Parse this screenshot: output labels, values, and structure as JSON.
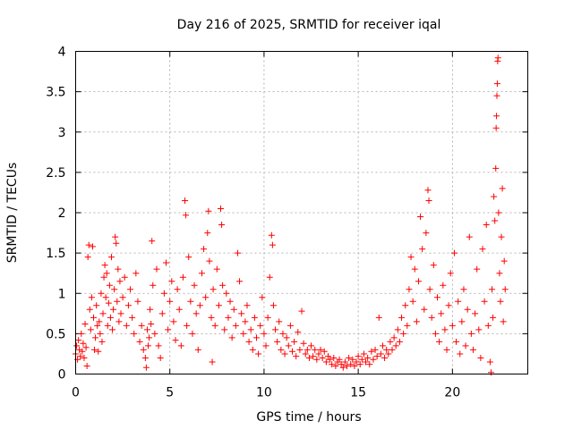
{
  "chart_data": {
    "type": "scatter",
    "title": "Day 216 of 2025, SRMTID for receiver iqal",
    "xlabel": "GPS time / hours",
    "ylabel": "SRMTID / TECUs",
    "xlim": [
      0,
      24
    ],
    "ylim": [
      0,
      4
    ],
    "xticks": [
      0,
      5,
      10,
      15,
      20
    ],
    "xtick_labels": [
      "0",
      "5",
      "10",
      "15",
      "20"
    ],
    "yticks": [
      0,
      0.5,
      1,
      1.5,
      2,
      2.5,
      3,
      3.5,
      4
    ],
    "ytick_labels": [
      "0",
      "0.5",
      "1",
      "1.5",
      "2",
      "2.5",
      "3",
      "3.5",
      "4"
    ],
    "grid": true,
    "marker": "+",
    "color": "#ff0000",
    "series": [
      {
        "name": "SRMTID",
        "points": [
          [
            0.0,
            0.25
          ],
          [
            0.05,
            0.35
          ],
          [
            0.1,
            0.18
          ],
          [
            0.15,
            0.42
          ],
          [
            0.2,
            0.3
          ],
          [
            0.25,
            0.22
          ],
          [
            0.3,
            0.5
          ],
          [
            0.35,
            0.28
          ],
          [
            0.4,
            0.38
          ],
          [
            0.45,
            0.2
          ],
          [
            0.5,
            0.62
          ],
          [
            0.55,
            0.33
          ],
          [
            0.6,
            0.1
          ],
          [
            0.65,
            1.45
          ],
          [
            0.7,
            1.6
          ],
          [
            0.75,
            0.8
          ],
          [
            0.8,
            0.55
          ],
          [
            0.85,
            0.95
          ],
          [
            0.9,
            1.58
          ],
          [
            0.95,
            0.7
          ],
          [
            1.0,
            0.3
          ],
          [
            1.05,
            0.45
          ],
          [
            1.1,
            0.85
          ],
          [
            1.15,
            0.6
          ],
          [
            1.2,
            0.28
          ],
          [
            1.25,
            0.65
          ],
          [
            1.3,
            0.5
          ],
          [
            1.35,
            1.0
          ],
          [
            1.4,
            0.4
          ],
          [
            1.45,
            0.75
          ],
          [
            1.5,
            1.2
          ],
          [
            1.55,
            1.35
          ],
          [
            1.6,
            0.95
          ],
          [
            1.65,
            1.25
          ],
          [
            1.7,
            0.6
          ],
          [
            1.75,
            0.88
          ],
          [
            1.8,
            1.1
          ],
          [
            1.85,
            0.7
          ],
          [
            1.9,
            1.45
          ],
          [
            1.95,
            0.55
          ],
          [
            2.0,
            0.8
          ],
          [
            2.05,
            1.05
          ],
          [
            2.1,
            1.7
          ],
          [
            2.15,
            1.62
          ],
          [
            2.2,
            0.9
          ],
          [
            2.25,
            1.3
          ],
          [
            2.3,
            0.65
          ],
          [
            2.35,
            1.15
          ],
          [
            2.4,
            0.75
          ],
          [
            2.5,
            0.95
          ],
          [
            2.6,
            1.2
          ],
          [
            2.7,
            0.6
          ],
          [
            2.8,
            0.85
          ],
          [
            2.9,
            1.05
          ],
          [
            3.0,
            0.7
          ],
          [
            3.1,
            0.5
          ],
          [
            3.2,
            1.25
          ],
          [
            3.3,
            0.9
          ],
          [
            3.4,
            0.4
          ],
          [
            3.5,
            0.6
          ],
          [
            3.6,
            0.3
          ],
          [
            3.7,
            0.2
          ],
          [
            3.75,
            0.08
          ],
          [
            3.8,
            0.55
          ],
          [
            3.85,
            0.35
          ],
          [
            3.9,
            0.45
          ],
          [
            3.95,
            0.8
          ],
          [
            4.0,
            0.62
          ],
          [
            4.05,
            1.65
          ],
          [
            4.1,
            1.1
          ],
          [
            4.2,
            0.5
          ],
          [
            4.3,
            1.3
          ],
          [
            4.4,
            0.35
          ],
          [
            4.5,
            0.2
          ],
          [
            4.6,
            0.75
          ],
          [
            4.7,
            1.0
          ],
          [
            4.8,
            1.38
          ],
          [
            4.9,
            0.55
          ],
          [
            5.0,
            0.9
          ],
          [
            5.1,
            1.15
          ],
          [
            5.2,
            0.65
          ],
          [
            5.3,
            0.42
          ],
          [
            5.4,
            1.05
          ],
          [
            5.5,
            0.8
          ],
          [
            5.6,
            0.35
          ],
          [
            5.7,
            1.2
          ],
          [
            5.8,
            2.15
          ],
          [
            5.85,
            1.97
          ],
          [
            5.9,
            0.6
          ],
          [
            6.0,
            1.45
          ],
          [
            6.1,
            0.9
          ],
          [
            6.2,
            0.5
          ],
          [
            6.3,
            1.1
          ],
          [
            6.4,
            0.75
          ],
          [
            6.5,
            0.3
          ],
          [
            6.6,
            0.85
          ],
          [
            6.7,
            1.25
          ],
          [
            6.8,
            1.55
          ],
          [
            6.9,
            0.95
          ],
          [
            7.0,
            1.75
          ],
          [
            7.05,
            2.02
          ],
          [
            7.1,
            1.4
          ],
          [
            7.2,
            0.7
          ],
          [
            7.25,
            0.15
          ],
          [
            7.3,
            1.05
          ],
          [
            7.4,
            0.6
          ],
          [
            7.5,
            1.3
          ],
          [
            7.6,
            0.85
          ],
          [
            7.7,
            2.05
          ],
          [
            7.75,
            1.85
          ],
          [
            7.8,
            1.1
          ],
          [
            7.9,
            0.55
          ],
          [
            8.0,
            1.0
          ],
          [
            8.1,
            0.7
          ],
          [
            8.2,
            0.9
          ],
          [
            8.3,
            0.45
          ],
          [
            8.4,
            0.8
          ],
          [
            8.5,
            0.6
          ],
          [
            8.6,
            1.5
          ],
          [
            8.7,
            1.15
          ],
          [
            8.8,
            0.75
          ],
          [
            8.9,
            0.5
          ],
          [
            9.0,
            0.65
          ],
          [
            9.1,
            0.85
          ],
          [
            9.2,
            0.4
          ],
          [
            9.3,
            0.55
          ],
          [
            9.4,
            0.3
          ],
          [
            9.5,
            0.7
          ],
          [
            9.6,
            0.45
          ],
          [
            9.7,
            0.25
          ],
          [
            9.8,
            0.6
          ],
          [
            9.9,
            0.95
          ],
          [
            10.0,
            0.5
          ],
          [
            10.1,
            0.35
          ],
          [
            10.2,
            0.7
          ],
          [
            10.3,
            1.2
          ],
          [
            10.4,
            1.72
          ],
          [
            10.45,
            1.6
          ],
          [
            10.5,
            0.85
          ],
          [
            10.6,
            0.55
          ],
          [
            10.7,
            0.4
          ],
          [
            10.8,
            0.65
          ],
          [
            10.9,
            0.3
          ],
          [
            11.0,
            0.5
          ],
          [
            11.1,
            0.25
          ],
          [
            11.2,
            0.45
          ],
          [
            11.3,
            0.35
          ],
          [
            11.4,
            0.6
          ],
          [
            11.5,
            0.28
          ],
          [
            11.6,
            0.4
          ],
          [
            11.7,
            0.22
          ],
          [
            11.8,
            0.52
          ],
          [
            11.9,
            0.3
          ],
          [
            12.0,
            0.78
          ],
          [
            12.1,
            0.38
          ],
          [
            12.2,
            0.25
          ],
          [
            12.3,
            0.3
          ],
          [
            12.4,
            0.2
          ],
          [
            12.5,
            0.35
          ],
          [
            12.6,
            0.22
          ],
          [
            12.7,
            0.3
          ],
          [
            12.8,
            0.18
          ],
          [
            12.9,
            0.25
          ],
          [
            13.0,
            0.3
          ],
          [
            13.1,
            0.2
          ],
          [
            13.2,
            0.28
          ],
          [
            13.3,
            0.15
          ],
          [
            13.4,
            0.22
          ],
          [
            13.5,
            0.18
          ],
          [
            13.6,
            0.12
          ],
          [
            13.7,
            0.2
          ],
          [
            13.8,
            0.1
          ],
          [
            13.9,
            0.15
          ],
          [
            14.0,
            0.18
          ],
          [
            14.1,
            0.12
          ],
          [
            14.2,
            0.08
          ],
          [
            14.3,
            0.15
          ],
          [
            14.4,
            0.1
          ],
          [
            14.5,
            0.2
          ],
          [
            14.6,
            0.12
          ],
          [
            14.7,
            0.18
          ],
          [
            14.8,
            0.1
          ],
          [
            14.9,
            0.15
          ],
          [
            15.0,
            0.22
          ],
          [
            15.1,
            0.12
          ],
          [
            15.2,
            0.18
          ],
          [
            15.3,
            0.25
          ],
          [
            15.4,
            0.15
          ],
          [
            15.5,
            0.2
          ],
          [
            15.6,
            0.12
          ],
          [
            15.7,
            0.28
          ],
          [
            15.8,
            0.18
          ],
          [
            15.9,
            0.3
          ],
          [
            16.0,
            0.22
          ],
          [
            16.1,
            0.7
          ],
          [
            16.2,
            0.25
          ],
          [
            16.3,
            0.35
          ],
          [
            16.4,
            0.2
          ],
          [
            16.5,
            0.3
          ],
          [
            16.6,
            0.25
          ],
          [
            16.7,
            0.4
          ],
          [
            16.8,
            0.3
          ],
          [
            16.9,
            0.45
          ],
          [
            17.0,
            0.35
          ],
          [
            17.1,
            0.55
          ],
          [
            17.2,
            0.4
          ],
          [
            17.3,
            0.7
          ],
          [
            17.4,
            0.5
          ],
          [
            17.5,
            0.85
          ],
          [
            17.6,
            0.6
          ],
          [
            17.7,
            1.05
          ],
          [
            17.8,
            1.45
          ],
          [
            17.9,
            0.9
          ],
          [
            18.0,
            1.3
          ],
          [
            18.1,
            0.65
          ],
          [
            18.2,
            1.15
          ],
          [
            18.3,
            1.95
          ],
          [
            18.4,
            1.55
          ],
          [
            18.5,
            0.8
          ],
          [
            18.6,
            1.75
          ],
          [
            18.7,
            2.28
          ],
          [
            18.75,
            2.15
          ],
          [
            18.8,
            1.05
          ],
          [
            18.9,
            0.7
          ],
          [
            19.0,
            1.35
          ],
          [
            19.1,
            0.5
          ],
          [
            19.2,
            0.95
          ],
          [
            19.3,
            0.4
          ],
          [
            19.4,
            0.75
          ],
          [
            19.5,
            1.1
          ],
          [
            19.6,
            0.55
          ],
          [
            19.7,
            0.3
          ],
          [
            19.8,
            0.85
          ],
          [
            19.9,
            1.25
          ],
          [
            20.0,
            0.6
          ],
          [
            20.1,
            1.5
          ],
          [
            20.2,
            0.4
          ],
          [
            20.3,
            0.9
          ],
          [
            20.4,
            0.25
          ],
          [
            20.5,
            0.65
          ],
          [
            20.6,
            1.05
          ],
          [
            20.7,
            0.35
          ],
          [
            20.8,
            0.8
          ],
          [
            20.9,
            1.7
          ],
          [
            21.0,
            0.5
          ],
          [
            21.1,
            0.3
          ],
          [
            21.2,
            0.75
          ],
          [
            21.3,
            1.3
          ],
          [
            21.4,
            0.55
          ],
          [
            21.5,
            0.2
          ],
          [
            21.6,
            1.55
          ],
          [
            21.7,
            0.9
          ],
          [
            21.8,
            1.85
          ],
          [
            21.9,
            0.6
          ],
          [
            22.0,
            0.15
          ],
          [
            22.05,
            0.02
          ],
          [
            22.1,
            1.05
          ],
          [
            22.15,
            0.7
          ],
          [
            22.2,
            2.2
          ],
          [
            22.25,
            1.9
          ],
          [
            22.3,
            2.55
          ],
          [
            22.32,
            3.05
          ],
          [
            22.34,
            3.2
          ],
          [
            22.36,
            3.45
          ],
          [
            22.38,
            3.6
          ],
          [
            22.4,
            3.88
          ],
          [
            22.42,
            3.92
          ],
          [
            22.45,
            2.0
          ],
          [
            22.5,
            1.25
          ],
          [
            22.55,
            0.9
          ],
          [
            22.6,
            1.7
          ],
          [
            22.65,
            2.3
          ],
          [
            22.7,
            0.65
          ],
          [
            22.75,
            1.4
          ],
          [
            22.8,
            1.05
          ]
        ]
      }
    ]
  }
}
